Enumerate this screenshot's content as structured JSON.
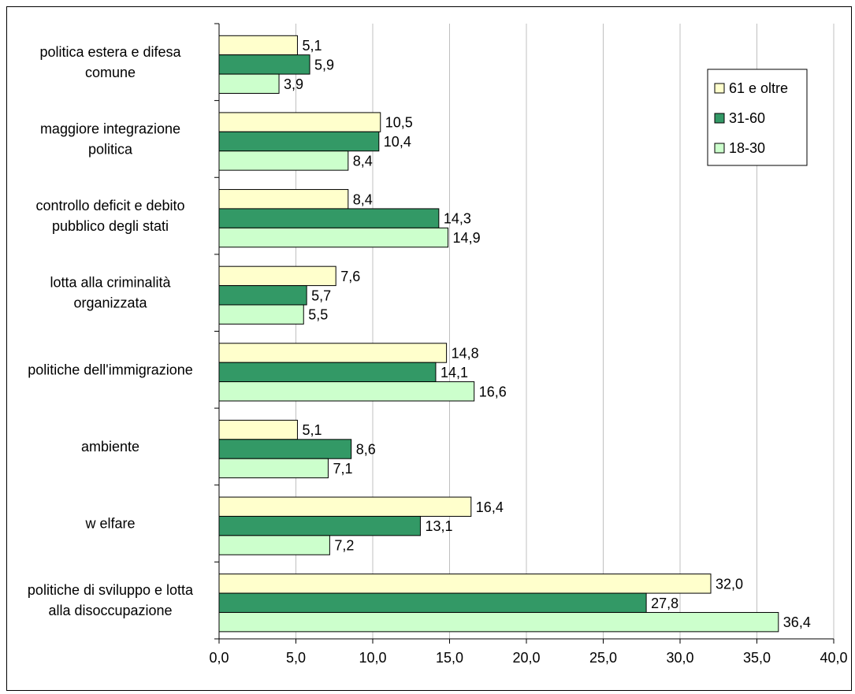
{
  "chart_data": {
    "type": "bar",
    "orientation": "horizontal",
    "categories": [
      [
        "politica estera e difesa",
        "comune"
      ],
      [
        "maggiore integrazione",
        "politica"
      ],
      [
        "controllo deficit e debito",
        "pubblico degli stati"
      ],
      [
        "lotta alla criminalità",
        "organizzata"
      ],
      [
        "politiche dell'immigrazione"
      ],
      [
        "ambiente"
      ],
      [
        "w elfare"
      ],
      [
        "politiche di sviluppo e lotta",
        "alla disoccupazione"
      ]
    ],
    "series": [
      {
        "name": "61 e oltre",
        "color": "#FFFFCC",
        "values": [
          5.1,
          10.5,
          8.4,
          7.6,
          14.8,
          5.1,
          16.4,
          32.0
        ],
        "labels": [
          "5,1",
          "10,5",
          "8,4",
          "7,6",
          "14,8",
          "5,1",
          "16,4",
          "32,0"
        ]
      },
      {
        "name": "31-60",
        "color": "#339966",
        "values": [
          5.9,
          10.4,
          14.3,
          5.7,
          14.1,
          8.6,
          13.1,
          27.8
        ],
        "labels": [
          "5,9",
          "10,4",
          "14,3",
          "5,7",
          "14,1",
          "8,6",
          "13,1",
          "27,8"
        ]
      },
      {
        "name": "18-30",
        "color": "#CCFFCC",
        "values": [
          3.9,
          8.4,
          14.9,
          5.5,
          16.6,
          7.1,
          7.2,
          36.4
        ],
        "labels": [
          "3,9",
          "8,4",
          "14,9",
          "5,5",
          "16,6",
          "7,1",
          "7,2",
          "36,4"
        ]
      }
    ],
    "xlim": [
      0,
      40
    ],
    "xticks": [
      0,
      5,
      10,
      15,
      20,
      25,
      30,
      35,
      40
    ],
    "xtick_labels": [
      "0,0",
      "5,0",
      "10,0",
      "15,0",
      "20,0",
      "25,0",
      "30,0",
      "35,0",
      "40,0"
    ],
    "grid": "vertical",
    "legend_position": "top-right",
    "title": "",
    "xlabel": "",
    "ylabel": ""
  }
}
